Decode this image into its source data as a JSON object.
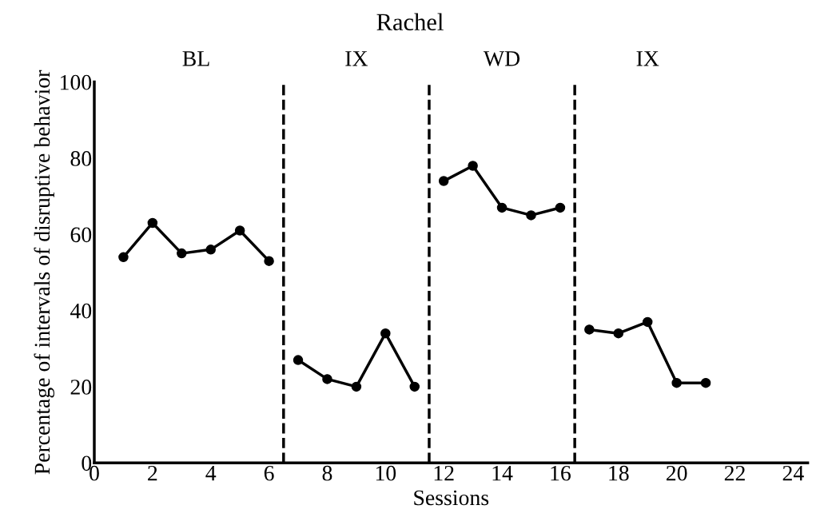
{
  "chart_data": {
    "type": "line",
    "title": "Rachel",
    "xlabel": "Sessions",
    "ylabel": "Percentage of intervals of disruptive behavior",
    "series": [
      {
        "color": "#000000",
        "x": [
          1,
          2,
          3,
          4,
          5,
          6
        ],
        "values": [
          54,
          63,
          55,
          56,
          61,
          53
        ]
      },
      {
        "color": "#000000",
        "x": [
          7,
          8,
          9,
          10,
          11
        ],
        "values": [
          27,
          22,
          20,
          34,
          20
        ]
      },
      {
        "color": "#000000",
        "x": [
          12,
          13,
          14,
          15,
          16
        ],
        "values": [
          74,
          78,
          67,
          65,
          67
        ]
      },
      {
        "color": "#000000",
        "x": [
          17,
          18,
          19,
          20,
          21
        ],
        "values": [
          35,
          34,
          37,
          21,
          21
        ]
      }
    ],
    "xlim": [
      0,
      24.5
    ],
    "xticks": [
      0,
      2,
      4,
      6,
      8,
      10,
      12,
      14,
      16,
      18,
      20,
      22,
      24
    ],
    "ylim": [
      0,
      100
    ],
    "yticks": [
      0,
      20,
      40,
      60,
      80,
      100
    ],
    "ref_lines": [
      {
        "axis": "x",
        "value": 6.5,
        "color": "#000000",
        "line_style": "dashed"
      },
      {
        "axis": "x",
        "value": 11.5,
        "color": "#000000",
        "line_style": "dashed"
      },
      {
        "axis": "x",
        "value": 16.5,
        "color": "#000000",
        "line_style": "dashed"
      }
    ],
    "annotations": [
      "BL",
      "IX",
      "WD",
      "IX"
    ],
    "marker": "circle",
    "line_style": "solid",
    "grid": false,
    "legend": false
  }
}
